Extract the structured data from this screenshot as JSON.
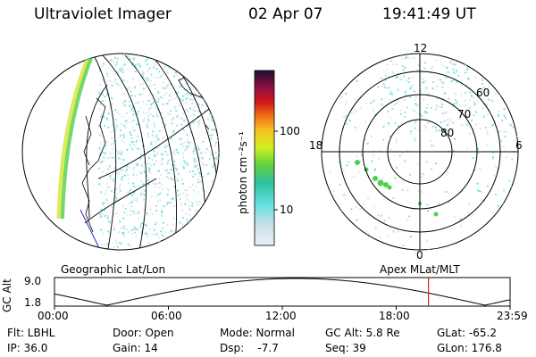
{
  "header": {
    "title": "Ultraviolet Imager",
    "date": "02 Apr 07",
    "time": "19:41:49 UT"
  },
  "colorbar": {
    "unit_label": "photon cm⁻²s⁻¹",
    "ticks": [
      "100",
      "10"
    ]
  },
  "polar": {
    "mlt_labels": [
      "12",
      "18",
      "6",
      "0"
    ],
    "lat_labels": [
      "60",
      "70",
      "80"
    ]
  },
  "panels": {
    "left_caption": "Geographic Lat/Lon",
    "right_caption": "Apex  MLat/MLT"
  },
  "altitude_plot": {
    "ylabel": "GC Alt",
    "ytick_top": "9.0",
    "ytick_bottom": "1.8",
    "xticks": [
      "00:00",
      "06:00",
      "12:00",
      "18:00",
      "23:59"
    ],
    "marker_time": "19:41"
  },
  "info": {
    "filter": "Flt: LBHL",
    "ip": "IP: 36.0",
    "door": "Door: Open",
    "gain": "Gain: 14",
    "mode": "Mode: Normal",
    "dsp": "Dsp:    -7.7",
    "gc_alt": "GC Alt: 5.8 Re",
    "seq": "Seq: 39",
    "glat": "GLat: -65.2",
    "glon": "GLon: 176.8"
  },
  "colors": {
    "aurora_cyan": "#6fe6e6",
    "aurora_green": "#4ed04e",
    "aurora_yellow": "#d8e84a",
    "marker_red": "#e02020"
  }
}
